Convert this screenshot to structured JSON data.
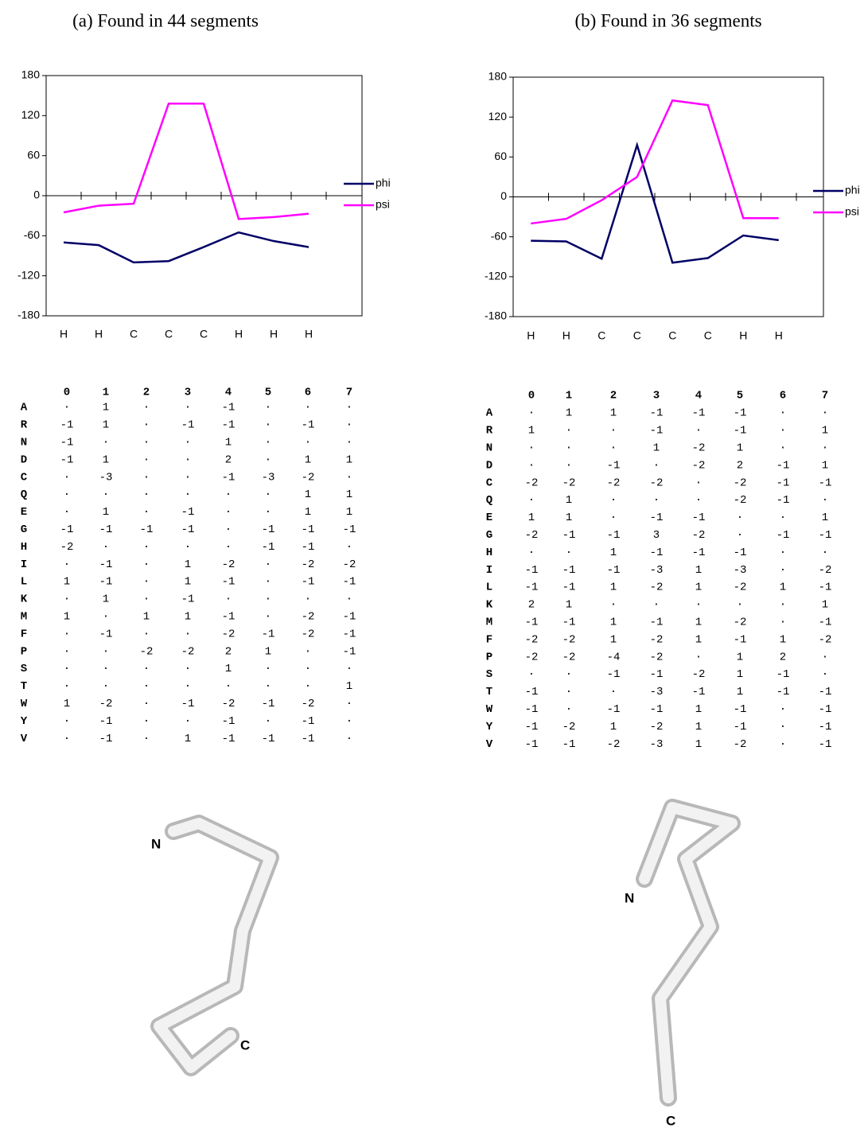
{
  "chart_data": [
    {
      "type": "line",
      "title": "(a) Found in 44 segments",
      "categories": [
        "H",
        "H",
        "C",
        "C",
        "C",
        "H",
        "H",
        "H"
      ],
      "series": [
        {
          "name": "phi",
          "color": "#000066",
          "values": [
            -70,
            -74,
            -100,
            -98,
            -77,
            -55,
            -68,
            -77
          ]
        },
        {
          "name": "psi",
          "color": "#ff00ff",
          "values": [
            -25,
            -15,
            -12,
            138,
            138,
            -35,
            -32,
            -27
          ]
        }
      ],
      "ylim": [
        -180,
        180
      ],
      "yticks": [
        -180,
        -120,
        -60,
        0,
        60,
        120,
        180
      ]
    },
    {
      "type": "line",
      "title": "(b) Found in 36 segments",
      "categories": [
        "H",
        "H",
        "C",
        "C",
        "C",
        "C",
        "H",
        "H"
      ],
      "series": [
        {
          "name": "phi",
          "color": "#000066",
          "values": [
            -66,
            -67,
            -93,
            78,
            -99,
            -92,
            -58,
            -65
          ]
        },
        {
          "name": "psi",
          "color": "#ff00ff",
          "values": [
            -40,
            -33,
            -5,
            30,
            145,
            138,
            -32,
            -32
          ]
        }
      ],
      "ylim": [
        -180,
        180
      ],
      "yticks": [
        -180,
        -120,
        -60,
        0,
        60,
        120,
        180
      ]
    }
  ],
  "tables": [
    {
      "columns": [
        "0",
        "1",
        "2",
        "3",
        "4",
        "5",
        "6",
        "7"
      ],
      "row_labels": [
        "A",
        "R",
        "N",
        "D",
        "C",
        "Q",
        "E",
        "G",
        "H",
        "I",
        "L",
        "K",
        "M",
        "F",
        "P",
        "S",
        "T",
        "W",
        "Y",
        "V"
      ],
      "cells": [
        [
          "·",
          1,
          "·",
          "·",
          -1,
          "·",
          "·",
          "·"
        ],
        [
          -1,
          1,
          "·",
          -1,
          -1,
          "·",
          -1,
          "·"
        ],
        [
          -1,
          "·",
          "·",
          "·",
          1,
          "·",
          "·",
          "·"
        ],
        [
          -1,
          1,
          "·",
          "·",
          2,
          "·",
          1,
          1
        ],
        [
          "·",
          -3,
          "·",
          "·",
          -1,
          -3,
          -2,
          "·"
        ],
        [
          "·",
          "·",
          "·",
          "·",
          "·",
          "·",
          1,
          1
        ],
        [
          "·",
          1,
          "·",
          -1,
          "·",
          "·",
          1,
          1
        ],
        [
          -1,
          -1,
          -1,
          -1,
          "·",
          -1,
          -1,
          -1
        ],
        [
          -2,
          "·",
          "·",
          "·",
          "·",
          -1,
          -1,
          "·"
        ],
        [
          "·",
          -1,
          "·",
          1,
          -2,
          "·",
          -2,
          -2
        ],
        [
          1,
          -1,
          "·",
          1,
          -1,
          "·",
          -1,
          -1
        ],
        [
          "·",
          1,
          "·",
          -1,
          "·",
          "·",
          "·",
          "·"
        ],
        [
          1,
          "·",
          1,
          1,
          -1,
          "·",
          -2,
          -1
        ],
        [
          "·",
          -1,
          "·",
          "·",
          -2,
          -1,
          -2,
          -1
        ],
        [
          "·",
          "·",
          -2,
          -2,
          2,
          1,
          "·",
          -1
        ],
        [
          "·",
          "·",
          "·",
          "·",
          1,
          "·",
          "·",
          "·"
        ],
        [
          "·",
          "·",
          "·",
          "·",
          "·",
          "·",
          "·",
          1
        ],
        [
          1,
          -2,
          "·",
          -1,
          -2,
          -1,
          -2,
          "·"
        ],
        [
          "·",
          -1,
          "·",
          "·",
          -1,
          "·",
          -1,
          "·"
        ],
        [
          "·",
          -1,
          "·",
          1,
          -1,
          -1,
          -1,
          "·"
        ]
      ]
    },
    {
      "columns": [
        "0",
        "1",
        "2",
        "3",
        "4",
        "5",
        "6",
        "7"
      ],
      "row_labels": [
        "A",
        "R",
        "N",
        "D",
        "C",
        "Q",
        "E",
        "G",
        "H",
        "I",
        "L",
        "K",
        "M",
        "F",
        "P",
        "S",
        "T",
        "W",
        "Y",
        "V"
      ],
      "cells": [
        [
          "·",
          1,
          1,
          -1,
          -1,
          -1,
          "·",
          "·"
        ],
        [
          1,
          "·",
          "·",
          -1,
          "·",
          -1,
          "·",
          1
        ],
        [
          "·",
          "·",
          "·",
          1,
          -2,
          1,
          "·",
          "·"
        ],
        [
          "·",
          "·",
          -1,
          "·",
          -2,
          2,
          -1,
          1
        ],
        [
          -2,
          -2,
          -2,
          -2,
          "·",
          -2,
          -1,
          -1
        ],
        [
          "·",
          1,
          "·",
          "·",
          "·",
          -2,
          -1,
          "·"
        ],
        [
          1,
          1,
          "·",
          -1,
          -1,
          "·",
          "·",
          1
        ],
        [
          -2,
          -1,
          -1,
          3,
          -2,
          "·",
          -1,
          -1
        ],
        [
          "·",
          "·",
          1,
          -1,
          -1,
          -1,
          "·",
          "·"
        ],
        [
          -1,
          -1,
          -1,
          -3,
          1,
          -3,
          "·",
          -2
        ],
        [
          -1,
          -1,
          1,
          -2,
          1,
          -2,
          1,
          -1
        ],
        [
          2,
          1,
          "·",
          "·",
          "·",
          "·",
          "·",
          1
        ],
        [
          -1,
          -1,
          1,
          -1,
          1,
          -2,
          "·",
          -1
        ],
        [
          -2,
          -2,
          1,
          -2,
          1,
          -1,
          1,
          -2
        ],
        [
          -2,
          -2,
          -4,
          -2,
          "·",
          1,
          2,
          "·"
        ],
        [
          "·",
          "·",
          -1,
          -1,
          -2,
          1,
          -1,
          "·"
        ],
        [
          -1,
          "·",
          "·",
          -3,
          -1,
          1,
          -1,
          -1
        ],
        [
          -1,
          "·",
          -1,
          -1,
          1,
          -1,
          "·",
          -1
        ],
        [
          -1,
          -2,
          1,
          -2,
          1,
          -1,
          "·",
          -1
        ],
        [
          -1,
          -1,
          -2,
          -3,
          1,
          -2,
          "·",
          -1
        ]
      ]
    }
  ],
  "structures": [
    {
      "n_label": "N",
      "c_label": "C"
    },
    {
      "n_label": "N",
      "c_label": "C"
    }
  ]
}
